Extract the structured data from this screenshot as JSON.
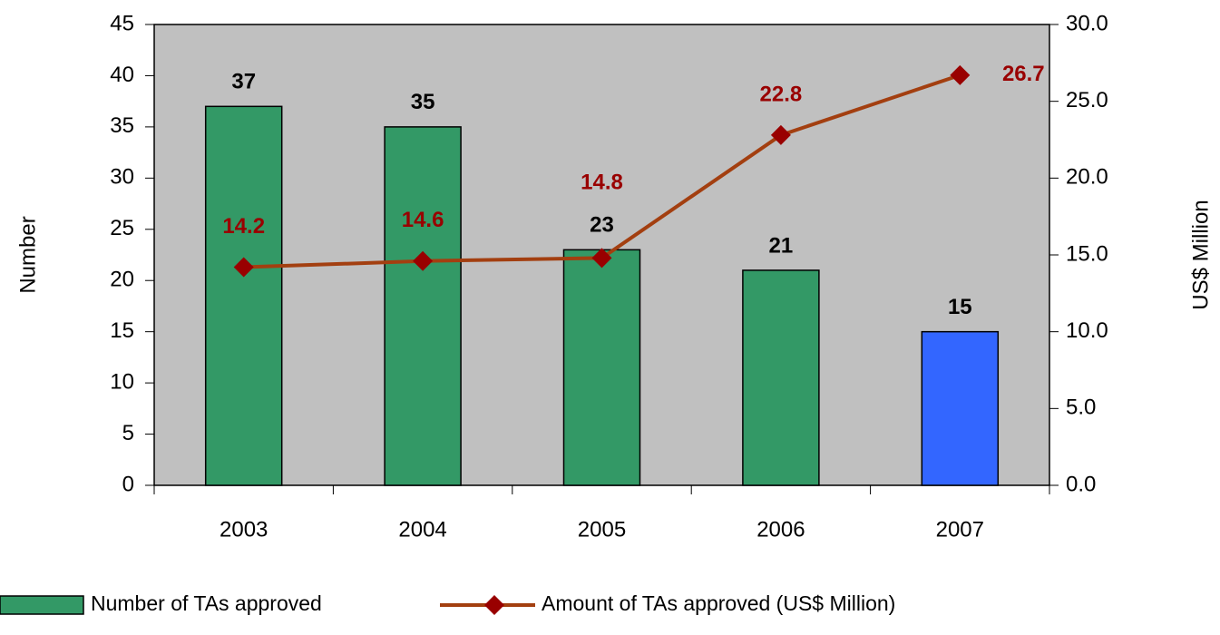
{
  "chart_data": {
    "type": "bar",
    "categories": [
      "2003",
      "2004",
      "2005",
      "2006",
      "2007"
    ],
    "ylabel": "Number",
    "y2label": "US$ Million",
    "ylim": [
      0,
      45
    ],
    "yticks": [
      0,
      5,
      10,
      15,
      20,
      25,
      30,
      35,
      40,
      45
    ],
    "y2lim": [
      0,
      30
    ],
    "y2ticks": [
      {
        "value": 0,
        "label": "0.0"
      },
      {
        "value": 5,
        "label": "5.0"
      },
      {
        "value": 10,
        "label": "10.0"
      },
      {
        "value": 15,
        "label": "15.0"
      },
      {
        "value": 20,
        "label": "20.0"
      },
      {
        "value": 25,
        "label": "25.0"
      },
      {
        "value": 30,
        "label": "30.0"
      }
    ],
    "series": [
      {
        "name": "Number of TAs approved",
        "type": "bar",
        "color": "#339966",
        "colors": [
          "#339966",
          "#339966",
          "#339966",
          "#339966",
          "#3366ff"
        ],
        "values": [
          37,
          35,
          23,
          21,
          15
        ]
      },
      {
        "name": "Amount of TAs approved (US$ Million)",
        "type": "line",
        "axis": "y2",
        "color": "#a33f10",
        "marker_color": "#990000",
        "values": [
          14.2,
          14.6,
          14.8,
          22.8,
          26.7
        ]
      }
    ],
    "legend": "bottom"
  }
}
